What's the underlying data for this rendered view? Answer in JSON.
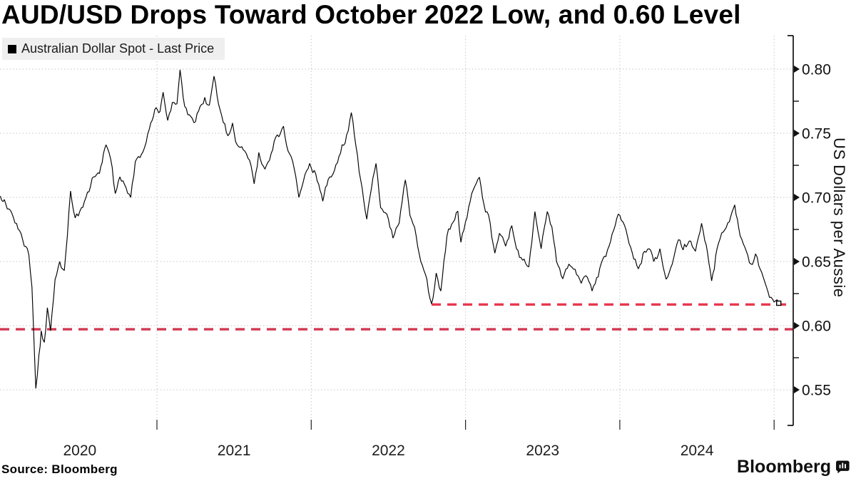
{
  "title": "AUD/USD Drops Toward October 2022 Low, and 0.60 Level",
  "legend": {
    "label": "Australian Dollar Spot - Last Price",
    "swatch_color": "#000000"
  },
  "footer": {
    "source": "Source: Bloomberg"
  },
  "branding": {
    "wordmark": "Bloomberg"
  },
  "chart_data": {
    "type": "line",
    "title": "AUD/USD Drops Toward October 2022 Low, and 0.60 Level",
    "xlabel": "",
    "ylabel": "US Dollars per Aussie",
    "xlim": [
      2019.98,
      2025.12
    ],
    "ylim": [
      0.525,
      0.815
    ],
    "grid": {
      "horizontal": true,
      "vertical": true,
      "style": "dotted",
      "color": "#c6c6c6"
    },
    "legend_position": "top-left",
    "x_ticks": [
      {
        "label": "2020",
        "year": 2020
      },
      {
        "label": "2021",
        "year": 2021
      },
      {
        "label": "2022",
        "year": 2022
      },
      {
        "label": "2023",
        "year": 2023
      },
      {
        "label": "2024",
        "year": 2024
      }
    ],
    "x_year_boundaries": [
      2021,
      2022,
      2023,
      2024,
      2025
    ],
    "y_major_ticks": [
      {
        "v": 0.8,
        "label": "0.80"
      },
      {
        "v": 0.75,
        "label": "0.75"
      },
      {
        "v": 0.7,
        "label": "0.70"
      },
      {
        "v": 0.65,
        "label": "0.65"
      },
      {
        "v": 0.6,
        "label": "0.60"
      },
      {
        "v": 0.55,
        "label": "0.55"
      }
    ],
    "y_minor_ticks": [
      0.775,
      0.725,
      0.675,
      0.625,
      0.575
    ],
    "reference_lines": [
      {
        "name": "october-2022-low",
        "value": 0.6165,
        "x_start": 2022.78,
        "x_end": 2025.12,
        "color": "#e8384f",
        "style": "dashed"
      },
      {
        "name": "0.60-level",
        "value": 0.5972,
        "x_start": 2019.98,
        "x_end": 2025.12,
        "color": "#d23750",
        "style": "dashed"
      }
    ],
    "series": [
      {
        "name": "Australian Dollar Spot - Last Price",
        "color": "#000000",
        "last_price_marker": true,
        "points": [
          [
            2019.985,
            0.701
          ],
          [
            2020.02,
            0.695
          ],
          [
            2020.05,
            0.69
          ],
          [
            2020.08,
            0.68
          ],
          [
            2020.11,
            0.674
          ],
          [
            2020.14,
            0.662
          ],
          [
            2020.17,
            0.655
          ],
          [
            2020.19,
            0.63
          ],
          [
            2020.215,
            0.551
          ],
          [
            2020.235,
            0.577
          ],
          [
            2020.25,
            0.596
          ],
          [
            2020.27,
            0.587
          ],
          [
            2020.29,
            0.614
          ],
          [
            2020.31,
            0.596
          ],
          [
            2020.34,
            0.636
          ],
          [
            2020.37,
            0.65
          ],
          [
            2020.4,
            0.643
          ],
          [
            2020.44,
            0.705
          ],
          [
            2020.47,
            0.684
          ],
          [
            2020.5,
            0.689
          ],
          [
            2020.54,
            0.7
          ],
          [
            2020.58,
            0.715
          ],
          [
            2020.61,
            0.718
          ],
          [
            2020.645,
            0.727
          ],
          [
            2020.67,
            0.741
          ],
          [
            2020.7,
            0.73
          ],
          [
            2020.73,
            0.703
          ],
          [
            2020.76,
            0.716
          ],
          [
            2020.79,
            0.71
          ],
          [
            2020.83,
            0.7
          ],
          [
            2020.86,
            0.728
          ],
          [
            2020.89,
            0.731
          ],
          [
            2020.92,
            0.739
          ],
          [
            2020.96,
            0.758
          ],
          [
            2020.995,
            0.77
          ],
          [
            2021.02,
            0.767
          ],
          [
            2021.04,
            0.782
          ],
          [
            2021.07,
            0.76
          ],
          [
            2021.1,
            0.774
          ],
          [
            2021.13,
            0.773
          ],
          [
            2021.15,
            0.7995
          ],
          [
            2021.18,
            0.771
          ],
          [
            2021.22,
            0.763
          ],
          [
            2021.25,
            0.759
          ],
          [
            2021.28,
            0.771
          ],
          [
            2021.31,
            0.778
          ],
          [
            2021.34,
            0.772
          ],
          [
            2021.37,
            0.7945
          ],
          [
            2021.41,
            0.768
          ],
          [
            2021.46,
            0.748
          ],
          [
            2021.49,
            0.758
          ],
          [
            2021.52,
            0.741
          ],
          [
            2021.56,
            0.737
          ],
          [
            2021.6,
            0.729
          ],
          [
            2021.63,
            0.7106
          ],
          [
            2021.66,
            0.735
          ],
          [
            2021.7,
            0.722
          ],
          [
            2021.73,
            0.729
          ],
          [
            2021.77,
            0.747
          ],
          [
            2021.82,
            0.7555
          ],
          [
            2021.85,
            0.736
          ],
          [
            2021.88,
            0.728
          ],
          [
            2021.92,
            0.7
          ],
          [
            2021.95,
            0.713
          ],
          [
            2021.99,
            0.7265
          ],
          [
            2022.03,
            0.718
          ],
          [
            2022.075,
            0.697
          ],
          [
            2022.11,
            0.714
          ],
          [
            2022.14,
            0.718
          ],
          [
            2022.17,
            0.727
          ],
          [
            2022.2,
            0.741
          ],
          [
            2022.23,
            0.749
          ],
          [
            2022.26,
            0.7661
          ],
          [
            2022.29,
            0.74
          ],
          [
            2022.32,
            0.714
          ],
          [
            2022.36,
            0.683
          ],
          [
            2022.39,
            0.707
          ],
          [
            2022.42,
            0.7265
          ],
          [
            2022.45,
            0.692
          ],
          [
            2022.49,
            0.687
          ],
          [
            2022.53,
            0.6682
          ],
          [
            2022.57,
            0.68
          ],
          [
            2022.61,
            0.7136
          ],
          [
            2022.64,
            0.686
          ],
          [
            2022.68,
            0.67
          ],
          [
            2022.71,
            0.65
          ],
          [
            2022.74,
            0.64
          ],
          [
            2022.78,
            0.617
          ],
          [
            2022.81,
            0.641
          ],
          [
            2022.84,
            0.627
          ],
          [
            2022.88,
            0.67
          ],
          [
            2022.91,
            0.679
          ],
          [
            2022.95,
            0.6893
          ],
          [
            2022.97,
            0.665
          ],
          [
            2023.0,
            0.681
          ],
          [
            2023.04,
            0.703
          ],
          [
            2023.09,
            0.7157
          ],
          [
            2023.12,
            0.694
          ],
          [
            2023.15,
            0.686
          ],
          [
            2023.19,
            0.6565
          ],
          [
            2023.22,
            0.672
          ],
          [
            2023.26,
            0.662
          ],
          [
            2023.3,
            0.678
          ],
          [
            2023.33,
            0.66
          ],
          [
            2023.37,
            0.651
          ],
          [
            2023.41,
            0.6458
          ],
          [
            2023.45,
            0.689
          ],
          [
            2023.49,
            0.66
          ],
          [
            2023.53,
            0.689
          ],
          [
            2023.56,
            0.677
          ],
          [
            2023.59,
            0.65
          ],
          [
            2023.63,
            0.6365
          ],
          [
            2023.67,
            0.648
          ],
          [
            2023.71,
            0.644
          ],
          [
            2023.75,
            0.633
          ],
          [
            2023.78,
            0.639
          ],
          [
            2023.82,
            0.627
          ],
          [
            2023.86,
            0.638
          ],
          [
            2023.89,
            0.652
          ],
          [
            2023.93,
            0.662
          ],
          [
            2023.99,
            0.687
          ],
          [
            2024.02,
            0.681
          ],
          [
            2024.06,
            0.664
          ],
          [
            2024.09,
            0.652
          ],
          [
            2024.12,
            0.6443
          ],
          [
            2024.15,
            0.656
          ],
          [
            2024.19,
            0.66
          ],
          [
            2024.22,
            0.65
          ],
          [
            2024.26,
            0.66
          ],
          [
            2024.3,
            0.6362
          ],
          [
            2024.34,
            0.648
          ],
          [
            2024.38,
            0.667
          ],
          [
            2024.41,
            0.659
          ],
          [
            2024.45,
            0.666
          ],
          [
            2024.49,
            0.658
          ],
          [
            2024.53,
            0.6798
          ],
          [
            2024.56,
            0.663
          ],
          [
            2024.595,
            0.6349
          ],
          [
            2024.63,
            0.66
          ],
          [
            2024.67,
            0.673
          ],
          [
            2024.71,
            0.681
          ],
          [
            2024.745,
            0.6942
          ],
          [
            2024.78,
            0.67
          ],
          [
            2024.82,
            0.658
          ],
          [
            2024.85,
            0.648
          ],
          [
            2024.88,
            0.656
          ],
          [
            2024.91,
            0.644
          ],
          [
            2024.94,
            0.634
          ],
          [
            2024.97,
            0.622
          ],
          [
            2025.0,
            0.6184
          ],
          [
            2025.03,
            0.6175
          ]
        ]
      }
    ]
  }
}
